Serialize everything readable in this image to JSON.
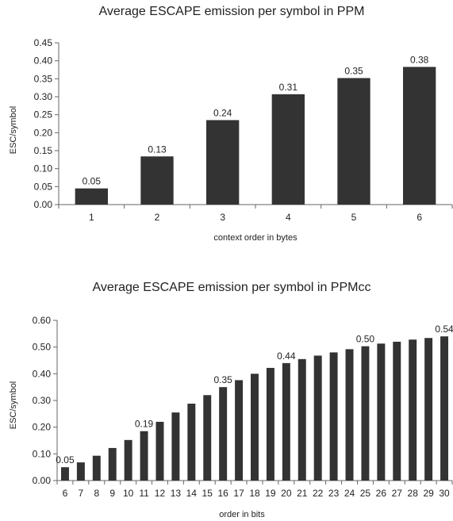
{
  "chart_data": [
    {
      "type": "bar",
      "title": "Average ESCAPE emission per symbol in PPM",
      "xlabel": "context order in bytes",
      "ylabel": "ESC/symbol",
      "categories": [
        "1",
        "2",
        "3",
        "4",
        "5",
        "6"
      ],
      "values": [
        0.045,
        0.134,
        0.235,
        0.307,
        0.352,
        0.383
      ],
      "data_labels": [
        "0.05",
        "0.13",
        "0.24",
        "0.31",
        "0.35",
        "0.38"
      ],
      "yticks": [
        "0.00",
        "0.05",
        "0.10",
        "0.15",
        "0.20",
        "0.25",
        "0.30",
        "0.35",
        "0.40",
        "0.45"
      ],
      "ylim": [
        0,
        0.45
      ],
      "bar_color": "#333333",
      "grid": false,
      "legend": "none"
    },
    {
      "type": "bar",
      "title": "Average ESCAPE emission per symbol in PPMcc",
      "xlabel": "order in bits",
      "ylabel": "ESC/symbol",
      "categories": [
        "6",
        "7",
        "8",
        "9",
        "10",
        "11",
        "12",
        "13",
        "14",
        "15",
        "16",
        "17",
        "18",
        "19",
        "20",
        "21",
        "22",
        "23",
        "24",
        "25",
        "26",
        "27",
        "28",
        "29",
        "30"
      ],
      "values": [
        0.05,
        0.068,
        0.093,
        0.122,
        0.152,
        0.185,
        0.22,
        0.255,
        0.288,
        0.32,
        0.35,
        0.376,
        0.4,
        0.422,
        0.44,
        0.455,
        0.468,
        0.48,
        0.492,
        0.503,
        0.513,
        0.52,
        0.528,
        0.534,
        0.54
      ],
      "data_labels": [
        "0.05",
        "",
        "",
        "",
        "",
        "0.19",
        "",
        "",
        "",
        "",
        "0.35",
        "",
        "",
        "",
        "0.44",
        "",
        "",
        "",
        "",
        "0.50",
        "",
        "",
        "",
        "",
        "0.54"
      ],
      "yticks": [
        "0.00",
        "0.10",
        "0.20",
        "0.30",
        "0.40",
        "0.50",
        "0.60"
      ],
      "ylim": [
        0,
        0.6
      ],
      "bar_color": "#333333",
      "grid": false,
      "legend": "none"
    }
  ]
}
